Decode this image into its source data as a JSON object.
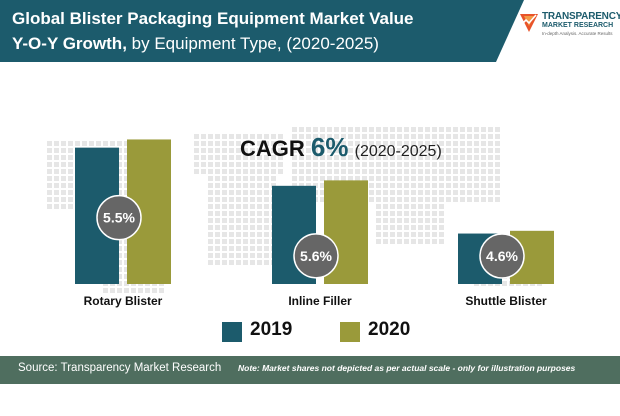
{
  "header": {
    "title_bold_line1": "Global Blister Packaging Equipment Market Value",
    "title_bold_line2": "Y-O-Y Growth,",
    "title_regular_line2": " by Equipment Type, (2020-2025)"
  },
  "logo": {
    "line1": "TRANSPARENCY",
    "line2": "MARKET RESEARCH",
    "tagline": "In-depth Analysis. Accurate Results",
    "icon": "tmr-logo-icon"
  },
  "cagr": {
    "label": "CAGR",
    "value": "6%",
    "period": "(2020-2025)"
  },
  "chart_data": {
    "type": "bar",
    "title": "Global Blister Packaging Equipment Market Value Y-O-Y Growth, by Equipment Type, (2020-2025)",
    "categories": [
      "Rotary Blister",
      "Inline Filler",
      "Shuttle Blister"
    ],
    "series": [
      {
        "name": "2019",
        "color": "#1c5b6c",
        "values": [
          100,
          72,
          37
        ]
      },
      {
        "name": "2020",
        "color": "#9a9a3a",
        "values": [
          106,
          76,
          39
        ]
      }
    ],
    "growth_labels": [
      "5.5%",
      "5.6%",
      "4.6%"
    ],
    "ylim": [
      0,
      110
    ],
    "xlabel": "",
    "ylabel": "",
    "legend": [
      "2019",
      "2020"
    ],
    "legend_position": "bottom",
    "grid": false
  },
  "footer": {
    "source": "Source: Transparency Market Research",
    "note": "Note: Market shares not depicted as per actual scale - only for illustration purposes"
  },
  "colors": {
    "primary": "#1c5b6c",
    "secondary": "#9a9a3a",
    "footer": "#4f6e5f",
    "bubble": "#666666",
    "accent": "#e8542a"
  }
}
